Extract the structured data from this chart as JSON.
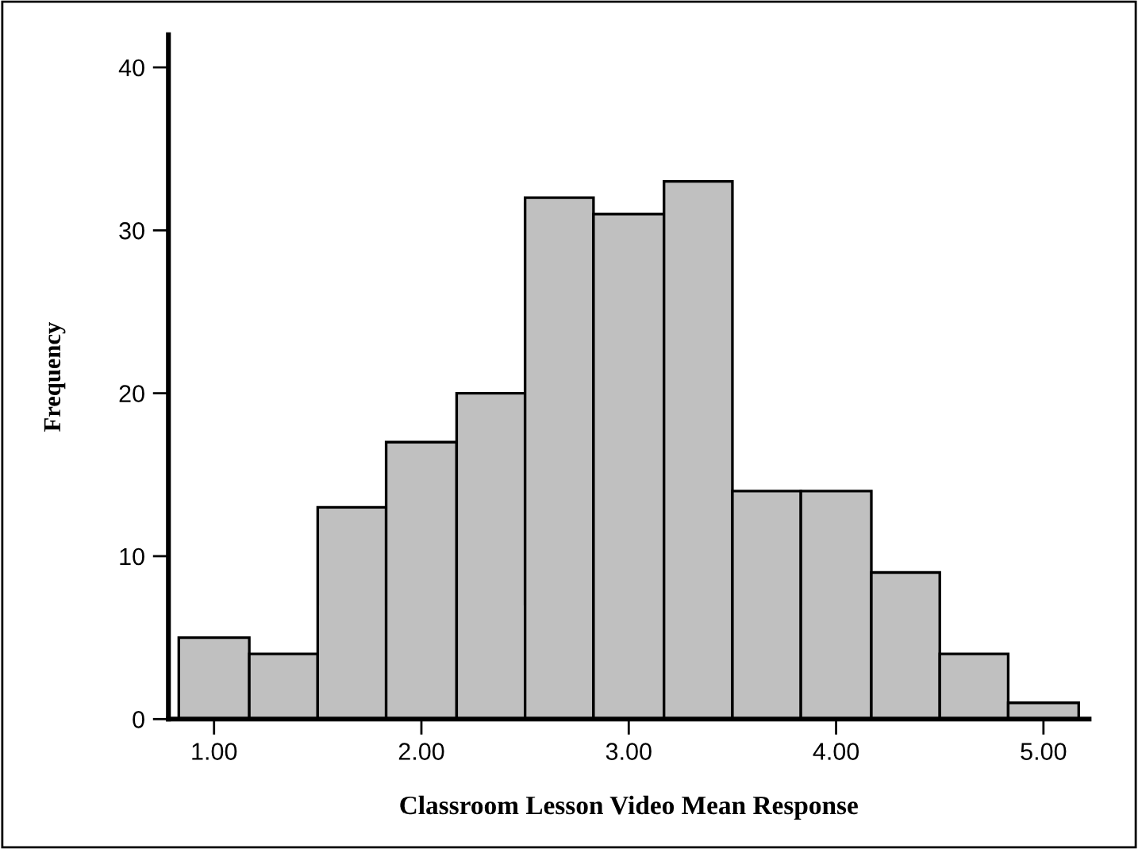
{
  "chart_data": {
    "type": "histogram",
    "xlabel": "Classroom Lesson Video Mean Response",
    "ylabel": "Frequency",
    "bins": [
      0.83,
      1.17,
      1.5,
      1.83,
      2.17,
      2.5,
      2.83,
      3.17,
      3.5,
      3.83,
      4.17,
      4.5,
      4.83,
      5.17
    ],
    "values": [
      5,
      4,
      13,
      17,
      20,
      32,
      31,
      33,
      14,
      14,
      9,
      4,
      1
    ],
    "color": "#c0c0c0",
    "xlim": [
      0.78,
      5.22
    ],
    "ylim": [
      0,
      42
    ],
    "xticks": [
      {
        "value": 1,
        "label": "1.00"
      },
      {
        "value": 2,
        "label": "2.00"
      },
      {
        "value": 3,
        "label": "3.00"
      },
      {
        "value": 4,
        "label": "4.00"
      },
      {
        "value": 5,
        "label": "5.00"
      }
    ],
    "yticks": [
      0,
      10,
      20,
      30,
      40
    ],
    "grid": false
  }
}
